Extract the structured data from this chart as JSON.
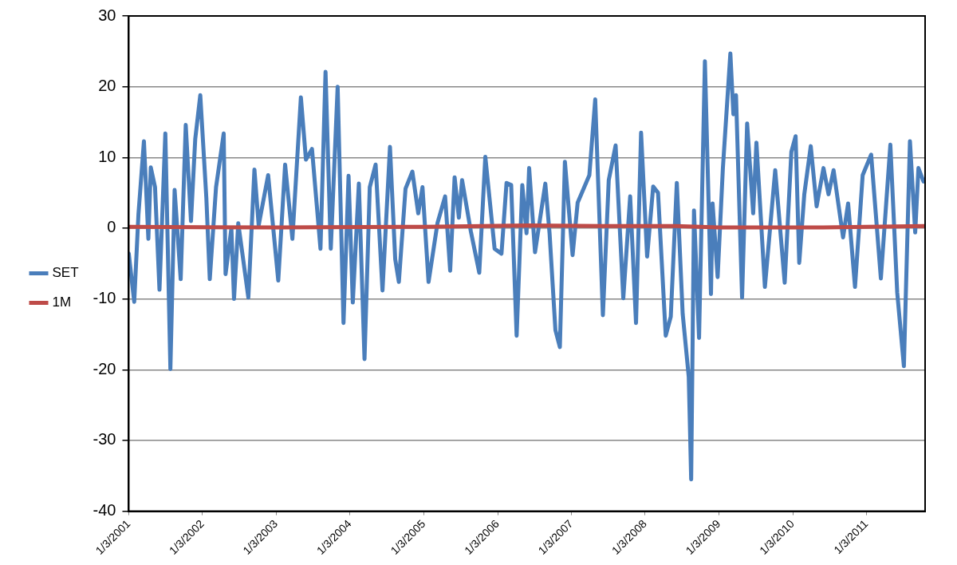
{
  "chart_data": {
    "type": "line",
    "legend": "left",
    "grid": "y",
    "xlim": [
      "2001-01-03",
      "2011-10-20"
    ],
    "xticks": [
      {
        "value": "2001-01-03",
        "label": "1/3/2001"
      },
      {
        "value": "2002-01-03",
        "label": "1/3/2002"
      },
      {
        "value": "2003-01-03",
        "label": "1/3/2003"
      },
      {
        "value": "2004-01-03",
        "label": "1/3/2004"
      },
      {
        "value": "2005-01-03",
        "label": "1/3/2005"
      },
      {
        "value": "2006-01-03",
        "label": "1/3/2006"
      },
      {
        "value": "2007-01-03",
        "label": "1/3/2007"
      },
      {
        "value": "2008-01-03",
        "label": "1/3/2008"
      },
      {
        "value": "2009-01-03",
        "label": "1/3/2009"
      },
      {
        "value": "2010-01-03",
        "label": "1/3/2010"
      },
      {
        "value": "2011-01-03",
        "label": "1/3/2011"
      }
    ],
    "ylim": [
      -40,
      30
    ],
    "yticks": [
      -40,
      -30,
      -20,
      -10,
      0,
      10,
      20,
      30
    ],
    "series": [
      {
        "name": "SET",
        "color": "#4a7ebb",
        "x": [
          "2001-01-03",
          "2001-01-30",
          "2001-02-20",
          "2001-03-19",
          "2001-04-10",
          "2001-04-22",
          "2001-05-13",
          "2001-06-04",
          "2001-07-03",
          "2001-07-28",
          "2001-08-18",
          "2001-09-17",
          "2001-10-12",
          "2001-11-07",
          "2001-11-28",
          "2001-12-23",
          "2002-01-22",
          "2002-02-08",
          "2002-03-11",
          "2002-04-18",
          "2002-04-27",
          "2002-05-26",
          "2002-06-08",
          "2002-06-29",
          "2002-08-18",
          "2002-09-17",
          "2002-10-08",
          "2002-11-24",
          "2003-01-13",
          "2003-02-16",
          "2003-03-24",
          "2003-05-05",
          "2003-05-30",
          "2003-06-29",
          "2003-08-10",
          "2003-09-04",
          "2003-09-30",
          "2003-11-03",
          "2003-12-02",
          "2003-12-27",
          "2004-01-17",
          "2004-02-16",
          "2004-03-15",
          "2004-04-10",
          "2004-05-09",
          "2004-06-12",
          "2004-07-19",
          "2004-08-14",
          "2004-09-01",
          "2004-10-04",
          "2004-11-07",
          "2004-12-06",
          "2004-12-27",
          "2005-01-26",
          "2005-03-11",
          "2005-04-18",
          "2005-05-13",
          "2005-06-04",
          "2005-06-25",
          "2005-07-11",
          "2005-08-23",
          "2005-10-04",
          "2005-11-03",
          "2005-12-19",
          "2006-01-22",
          "2006-02-16",
          "2006-03-11",
          "2006-04-07",
          "2006-05-05",
          "2006-05-26",
          "2006-06-08",
          "2006-07-07",
          "2006-08-27",
          "2006-09-17",
          "2006-10-16",
          "2006-11-07",
          "2006-12-02",
          "2007-01-09",
          "2007-02-03",
          "2007-04-02",
          "2007-05-01",
          "2007-06-08",
          "2007-07-07",
          "2007-08-10",
          "2007-09-17",
          "2007-10-21",
          "2007-11-19",
          "2007-12-14",
          "2008-01-13",
          "2008-02-12",
          "2008-03-07",
          "2008-04-14",
          "2008-05-09",
          "2008-06-08",
          "2008-07-07",
          "2008-08-06",
          "2008-08-18",
          "2008-09-01",
          "2008-09-26",
          "2008-10-25",
          "2008-11-24",
          "2008-12-02",
          "2008-12-27",
          "2009-01-22",
          "2009-02-28",
          "2009-03-15",
          "2009-03-28",
          "2009-04-27",
          "2009-05-22",
          "2009-06-21",
          "2009-07-07",
          "2009-08-18",
          "2009-10-08",
          "2009-11-24",
          "2009-12-27",
          "2010-01-17",
          "2010-02-04",
          "2010-03-01",
          "2010-04-02",
          "2010-05-01",
          "2010-06-04",
          "2010-06-29",
          "2010-07-24",
          "2010-09-09",
          "2010-10-04",
          "2010-11-07",
          "2010-12-15",
          "2011-01-26",
          "2011-03-15",
          "2011-05-01",
          "2011-06-04",
          "2011-07-07",
          "2011-08-06",
          "2011-09-01",
          "2011-09-17",
          "2011-10-12"
        ],
        "values": [
          -3.6,
          -10.4,
          2,
          12.3,
          -1.5,
          8.6,
          5.8,
          -8.7,
          13.4,
          -19.9,
          5.4,
          -7.2,
          14.6,
          1,
          12.6,
          18.8,
          4.3,
          -7.2,
          5.8,
          13.4,
          -6.5,
          0,
          -10,
          0.7,
          -9.8,
          8.3,
          0.4,
          7.5,
          -7.4,
          9,
          -1.5,
          18.5,
          9.7,
          11.2,
          -2.9,
          22.1,
          -2.9,
          20,
          -13.4,
          7.4,
          -10.5,
          6.3,
          -18.5,
          5.8,
          9,
          -8.8,
          11.5,
          -4.4,
          -7.6,
          5.6,
          8,
          2.1,
          5.8,
          -7.6,
          0.7,
          4.5,
          -6,
          7.2,
          1.5,
          6.8,
          -0.4,
          -6.3,
          10.1,
          -2.9,
          -3.6,
          6.4,
          6.1,
          -15.2,
          6.1,
          -0.7,
          8.5,
          -3.4,
          6.3,
          -0.7,
          -14.4,
          -16.8,
          9.4,
          -3.8,
          3.6,
          7.5,
          18.2,
          -12.3,
          6.8,
          11.7,
          -9.9,
          4.5,
          -13.4,
          13.5,
          -4,
          5.9,
          5,
          -15.2,
          -12.5,
          6.4,
          -12.1,
          -21,
          -35.5,
          2.5,
          -15.5,
          23.6,
          -9.3,
          3.5,
          -6.9,
          8.5,
          24.7,
          16.1,
          18.8,
          -9.8,
          14.8,
          2.1,
          12.1,
          -8.3,
          8.2,
          -7.7,
          10.8,
          13,
          -4.9,
          4.8,
          11.6,
          3.1,
          8.5,
          4.8,
          8.2,
          -1.3,
          3.5,
          -8.3,
          7.5,
          10.4,
          -7.1,
          11.8,
          -9.1,
          -19.5,
          12.3,
          -0.6,
          8.5,
          6.6
        ]
      },
      {
        "name": "1M",
        "color": "#be4b48",
        "x": [
          "2001-01-03",
          "2003-01-03",
          "2005-01-03",
          "2006-06-01",
          "2007-06-01",
          "2008-06-01",
          "2009-01-03",
          "2010-06-01",
          "2011-10-20"
        ],
        "values": [
          0.2,
          0.1,
          0.2,
          0.4,
          0.3,
          0.3,
          0.1,
          0.1,
          0.3
        ]
      }
    ]
  }
}
